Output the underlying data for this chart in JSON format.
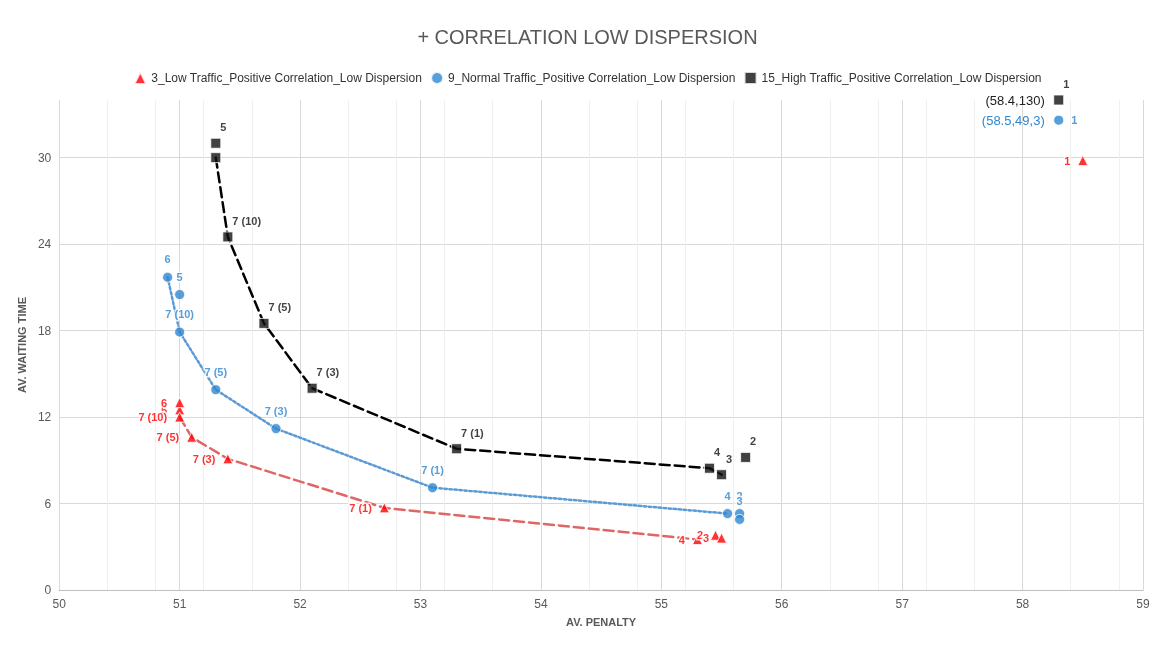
{
  "chart_data": {
    "type": "scatter",
    "title": "+ CORRELATION LOW DISPERSION",
    "xlabel": "AV. PENALTY",
    "ylabel": "AV. WAITING TIME",
    "xlim": [
      50,
      59
    ],
    "xticks": [
      50,
      51,
      52,
      53,
      54,
      55,
      56,
      57,
      58,
      59
    ],
    "ylim": [
      0,
      34
    ],
    "yticks": [
      0,
      6,
      12,
      18,
      24,
      30
    ],
    "grid": true,
    "legend": "top",
    "series": [
      {
        "name": "3_Low Traffic_Positive Correlation_Low Dispersion",
        "marker": "triangle",
        "color": "#ff0000",
        "x": [
          58.5,
          55.45,
          55.5,
          55.3,
          51.0,
          51.0,
          51.0,
          51.1,
          51.4,
          52.7
        ],
        "values": [
          29.8,
          3.8,
          3.6,
          3.5,
          12.5,
          13.0,
          12.0,
          10.6,
          9.1,
          5.7
        ]
      },
      {
        "name": "9_Normal Traffic_Positive Correlation_Low Dispersion",
        "marker": "circle",
        "color": "#2e86d0",
        "x": [
          58.3,
          55.65,
          55.65,
          55.55,
          51.0,
          50.9,
          51.0,
          51.3,
          51.8,
          53.1
        ],
        "values": [
          32.6,
          5.3,
          4.9,
          5.3,
          20.5,
          21.7,
          17.9,
          13.9,
          11.2,
          7.1
        ]
      },
      {
        "name": "15_High Traffic_Positive Correlation_Low Dispersion",
        "marker": "square",
        "color": "#111111",
        "x": [
          58.3,
          55.7,
          55.5,
          55.4,
          51.3,
          51.3,
          51.4,
          51.7,
          52.1,
          53.3
        ],
        "values": [
          34.0,
          9.2,
          8.0,
          8.45,
          31.0,
          30.0,
          24.5,
          18.5,
          14.0,
          9.8
        ]
      },
      {
        "type": "line",
        "line_style": "dashed",
        "color": "#e06666",
        "x": [
          51.0,
          51.1,
          51.4,
          52.7,
          55.3
        ],
        "values": [
          12.0,
          10.6,
          9.1,
          5.7,
          3.5
        ]
      },
      {
        "type": "line",
        "line_style": "dotted",
        "color": "#5b9bd5",
        "x": [
          50.9,
          51.0,
          51.3,
          51.8,
          53.1,
          55.55
        ],
        "values": [
          21.7,
          17.9,
          13.9,
          11.2,
          7.1,
          5.3
        ]
      },
      {
        "type": "line",
        "line_style": "dashed",
        "color": "#000000",
        "x": [
          51.3,
          51.4,
          51.7,
          52.1,
          53.3,
          55.4,
          55.5
        ],
        "values": [
          30.0,
          24.5,
          18.5,
          14.0,
          9.8,
          8.45,
          8.0
        ]
      }
    ],
    "annotations": [
      {
        "text": "1",
        "x": 58.5,
        "y": 29.8
      },
      {
        "text": "2",
        "x": 55.45,
        "y": 3.8
      },
      {
        "text": "3",
        "x": 55.5,
        "y": 3.6
      },
      {
        "text": "4",
        "x": 55.3,
        "y": 3.5
      },
      {
        "text": "5",
        "x": 51.0,
        "y": 12.5
      },
      {
        "text": "6",
        "x": 51.0,
        "y": 13.0
      },
      {
        "text": "7 (10)",
        "x": 51.0,
        "y": 12.0
      },
      {
        "text": "7 (5)",
        "x": 51.1,
        "y": 10.6
      },
      {
        "text": "7 (3)",
        "x": 51.4,
        "y": 9.1
      },
      {
        "text": "7 (1)",
        "x": 52.7,
        "y": 5.7
      },
      {
        "text": "1",
        "x": 58.3,
        "y": 32.6
      },
      {
        "text": "2",
        "x": 55.65,
        "y": 5.3
      },
      {
        "text": "3",
        "x": 55.65,
        "y": 4.9
      },
      {
        "text": "4",
        "x": 55.55,
        "y": 5.3
      },
      {
        "text": "5",
        "x": 51.0,
        "y": 20.5
      },
      {
        "text": "6",
        "x": 50.9,
        "y": 21.7
      },
      {
        "text": "7 (10)",
        "x": 51.0,
        "y": 17.9
      },
      {
        "text": "7 (5)",
        "x": 51.3,
        "y": 13.9
      },
      {
        "text": "7 (3)",
        "x": 51.8,
        "y": 11.2
      },
      {
        "text": "7 (1)",
        "x": 53.1,
        "y": 7.1
      },
      {
        "text": "1",
        "x": 58.3,
        "y": 34.0
      },
      {
        "text": "2",
        "x": 55.7,
        "y": 9.2
      },
      {
        "text": "3",
        "x": 55.5,
        "y": 8.0
      },
      {
        "text": "4",
        "x": 55.4,
        "y": 8.45
      },
      {
        "text": "5",
        "x": 51.3,
        "y": 31.0
      },
      {
        "text": "7 (10)",
        "x": 51.4,
        "y": 24.5
      },
      {
        "text": "7 (5)",
        "x": 51.7,
        "y": 18.5
      },
      {
        "text": "7 (3)",
        "x": 52.1,
        "y": 14.0
      },
      {
        "text": "7 (1)",
        "x": 53.3,
        "y": 9.8
      },
      {
        "text": "(58.4,130)",
        "x": 58.3,
        "y": 34.0
      },
      {
        "text": "(58.5,49,3)",
        "x": 58.3,
        "y": 32.6
      }
    ]
  }
}
